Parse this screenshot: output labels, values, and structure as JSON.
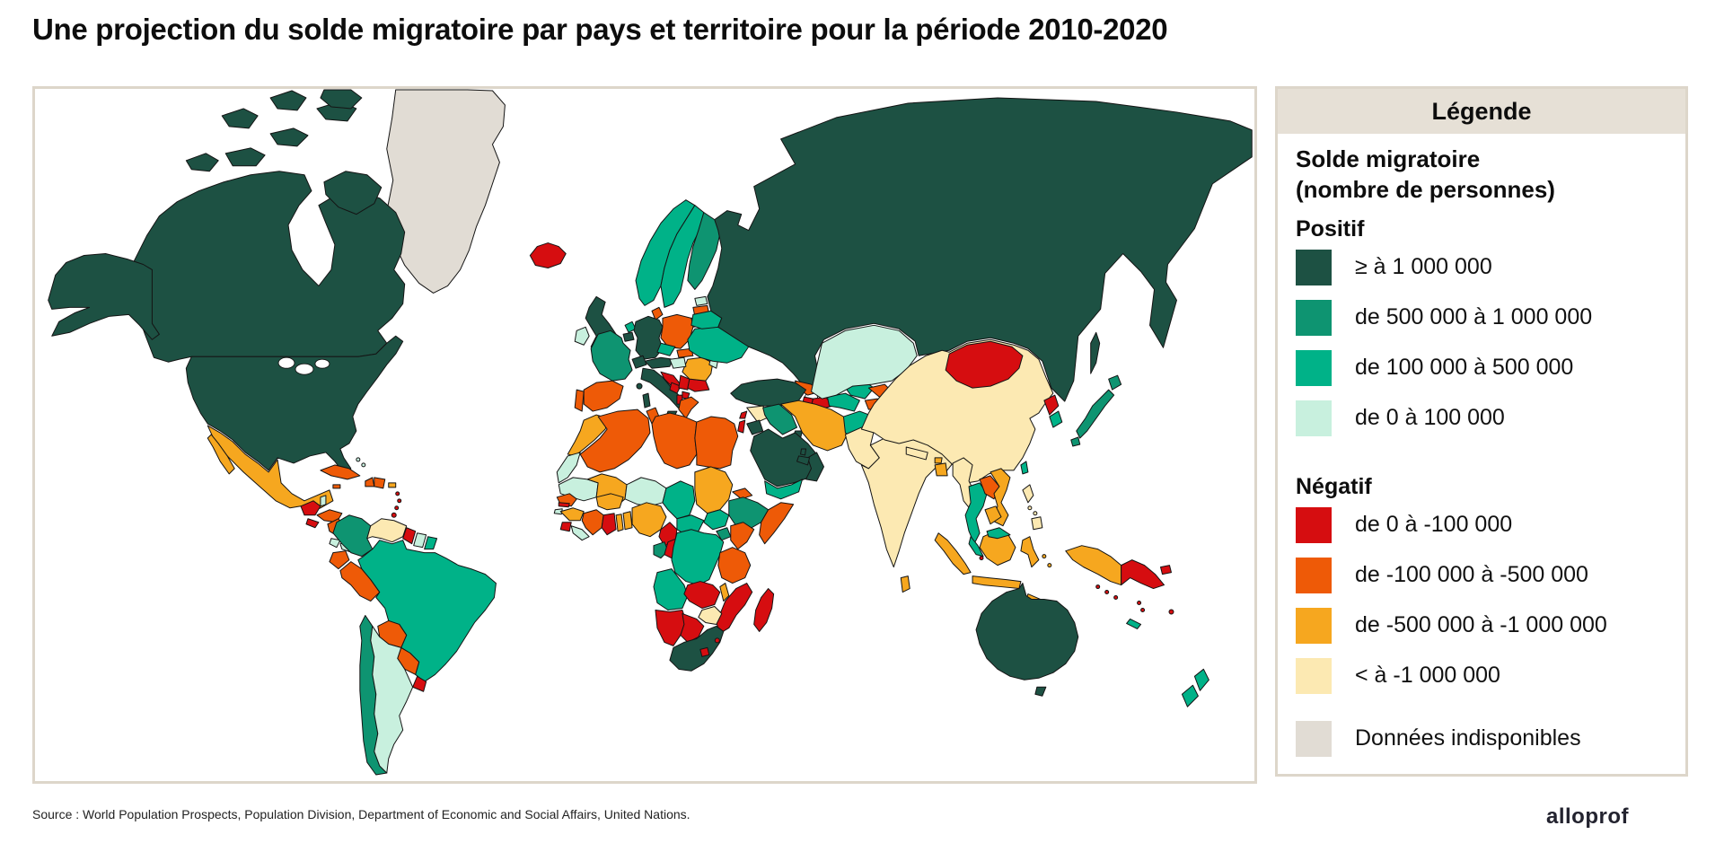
{
  "title": "Une projection du solde migratoire par pays et territoire pour la période 2010-2020",
  "source": "Source : World Population Prospects, Population Division, Department of Economic and Social Affairs, United Nations.",
  "brand": "alloprof",
  "legend": {
    "title": "Légende",
    "subtitle_line1": "Solde migratoire",
    "subtitle_line2": "(nombre de personnes)",
    "positive_label": "Positif",
    "negative_label": "Négatif",
    "positive_items": [
      {
        "key": "pos_1m",
        "label": "≥ à 1 000 000"
      },
      {
        "key": "pos_500k",
        "label": "de 500 000 à 1 000 000"
      },
      {
        "key": "pos_100k",
        "label": "de 100 000 à 500 000"
      },
      {
        "key": "pos_0",
        "label": "de 0 à 100 000"
      }
    ],
    "negative_items": [
      {
        "key": "neg_0",
        "label": "de 0 à -100 000"
      },
      {
        "key": "neg_100k",
        "label": "de -100 000 à -500 000"
      },
      {
        "key": "neg_500k",
        "label": "de -500 000 à -1 000 000"
      },
      {
        "key": "neg_1m",
        "label": "< à -1 000 000"
      }
    ],
    "nodata_item": {
      "key": "nodata",
      "label": "Données indisponibles"
    }
  },
  "palette": {
    "pos_1m": "#1d5143",
    "pos_500k": "#0e9471",
    "pos_100k": "#00b288",
    "pos_0": "#c8f0de",
    "neg_0": "#d60d10",
    "neg_100k": "#ee5a07",
    "neg_500k": "#f6a71f",
    "neg_1m": "#fce9b2",
    "nodata": "#e1dcd4",
    "panel_border": "#ddd6ca",
    "legend_header_bg": "#e6e0d6"
  },
  "map": {
    "countries": {
      "greenland": "nodata",
      "iceland": "neg_0",
      "canada": "pos_1m",
      "usa": "pos_1m",
      "alaska": "pos_1m",
      "mexico": "neg_500k",
      "baja": "neg_500k",
      "guatemala": "neg_0",
      "belize": "pos_0",
      "honduras": "neg_100k",
      "el-salvador": "neg_0",
      "nicaragua": "neg_100k",
      "costa-rica": "pos_0",
      "panama": "pos_0",
      "cuba": "neg_100k",
      "jamaica": "neg_100k",
      "haiti": "neg_100k",
      "dominican-republic": "neg_100k",
      "puerto-rico": "neg_500k",
      "bahamas": "pos_0",
      "antilles": "neg_0",
      "trinidad": "neg_0",
      "colombia": "pos_500k",
      "venezuela": "neg_1m",
      "guyana": "neg_0",
      "suriname": "pos_0",
      "guyane": "pos_100k",
      "ecuador": "neg_100k",
      "peru": "neg_100k",
      "brazil": "pos_100k",
      "bolivia": "neg_100k",
      "paraguay": "neg_100k",
      "uruguay": "neg_0",
      "chile": "pos_500k",
      "argentina": "pos_0",
      "norway": "pos_100k",
      "sweden": "pos_100k",
      "finland": "pos_500k",
      "denmark": "neg_100k",
      "estonia": "pos_0",
      "latvia": "neg_100k",
      "lithuania": "neg_100k",
      "uk": "pos_1m",
      "ireland": "pos_0",
      "netherlands": "pos_100k",
      "belgium": "pos_1m",
      "germany": "pos_1m",
      "poland": "neg_100k",
      "czechia": "pos_100k",
      "slovakia": "neg_100k",
      "austria": "pos_1m",
      "switzerland": "pos_1m",
      "france": "pos_500k",
      "corsica": "pos_1m",
      "spain": "neg_100k",
      "portugal": "neg_100k",
      "italy": "pos_1m",
      "croatia": "neg_0",
      "bosnia": "neg_0",
      "serbia": "neg_0",
      "albania": "neg_0",
      "macedonia": "neg_0",
      "greece": "neg_100k",
      "bulgaria": "neg_0",
      "romania": "neg_500k",
      "hungary": "pos_0",
      "moldova": "pos_0",
      "ukraine": "pos_100k",
      "belarus": "pos_100k",
      "russia": "pos_1m",
      "georgia": "neg_100k",
      "armenia": "neg_0",
      "azerbaijan": "neg_0",
      "turkey": "pos_1m",
      "syria": "neg_1m",
      "lebanon": "neg_0",
      "israel": "neg_0",
      "jordan": "pos_1m",
      "iraq": "pos_500k",
      "kuwait": "pos_1m",
      "saudi": "pos_1m",
      "yemen": "pos_100k",
      "oman": "pos_1m",
      "uae": "pos_1m",
      "qatar": "pos_1m",
      "iran": "neg_500k",
      "afghanistan": "pos_100k",
      "turkmenistan": "pos_100k",
      "uzbekistan": "pos_100k",
      "kyrgyzstan": "neg_100k",
      "tajikistan": "neg_100k",
      "kazakhstan": "pos_0",
      "pakistan": "neg_1m",
      "india": "neg_1m",
      "nepal": "neg_1m",
      "bhutan": "neg_500k",
      "bangladesh": "neg_500k",
      "sri-lanka": "neg_500k",
      "china": "neg_1m",
      "mongolia": "neg_0",
      "north-korea": "neg_0",
      "south-korea": "pos_100k",
      "japan": "pos_500k",
      "taiwan": "pos_100k",
      "myanmar": "neg_1m",
      "thailand": "pos_100k",
      "laos": "neg_100k",
      "vietnam": "neg_500k",
      "cambodia": "neg_500k",
      "malaysia": "pos_100k",
      "singapore": "neg_0",
      "indonesia": "neg_500k",
      "timor": "neg_500k",
      "philippines": "neg_1m",
      "papua-new-guinea": "neg_0",
      "australia": "pos_1m",
      "tasmania": "pos_1m",
      "new-zealand": "pos_100k",
      "new-caledonia": "pos_100k",
      "fiji": "neg_0",
      "solomons": "neg_0",
      "vanuatu": "neg_0",
      "morocco": "neg_500k",
      "western-sahara": "pos_0",
      "algeria": "neg_100k",
      "tunisia": "neg_100k",
      "libya": "neg_100k",
      "egypt": "neg_100k",
      "mauritania": "pos_0",
      "mali": "neg_500k",
      "niger": "pos_0",
      "chad": "pos_100k",
      "sudan": "neg_500k",
      "eritrea": "neg_100k",
      "djibouti": "neg_100k",
      "ethiopia": "pos_500k",
      "somalia": "neg_100k",
      "senegal": "neg_100k",
      "gambia": "neg_0",
      "guinea-bissau": "pos_0",
      "guinea": "neg_500k",
      "sierra-leone": "neg_0",
      "liberia": "pos_0",
      "ivory-coast": "neg_100k",
      "ghana": "neg_0",
      "togo": "neg_500k",
      "benin": "neg_500k",
      "burkina": "neg_500k",
      "nigeria": "neg_500k",
      "cameroon": "neg_0",
      "car": "pos_100k",
      "south-sudan": "pos_100k",
      "uganda": "pos_500k",
      "kenya": "neg_100k",
      "rwanda": "neg_0",
      "burundi": "neg_0",
      "gabon": "pos_500k",
      "congo": "neg_0",
      "drc": "pos_100k",
      "angola": "pos_100k",
      "zambia": "neg_0",
      "malawi": "neg_500k",
      "tanzania": "neg_100k",
      "mozambique": "neg_0",
      "zimbabwe": "neg_1m",
      "namibia": "neg_0",
      "botswana": "neg_0",
      "south-africa": "pos_1m",
      "lesotho": "neg_0",
      "swaziland": "neg_0",
      "madagascar": "neg_0"
    }
  }
}
